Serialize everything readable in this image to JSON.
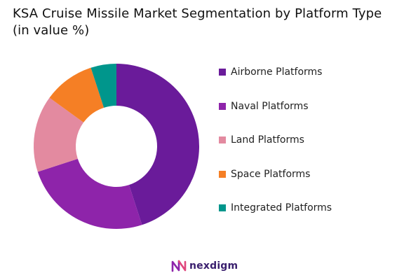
{
  "title_line1": "KSA Cruise Missile Market Segmentation by Platform Type",
  "title_line2": "(in value %)",
  "chart_data": {
    "type": "pie",
    "variant": "donut",
    "title": "KSA Cruise Missile Market Segmentation by Platform Type (in value %)",
    "unit": "%",
    "start_angle_deg": 0,
    "direction": "clockwise",
    "legend_position": "right",
    "series": [
      {
        "name": "Airborne Platforms",
        "value": 45,
        "color": "#6a1b9a"
      },
      {
        "name": "Naval Platforms",
        "value": 25,
        "color": "#8e24aa"
      },
      {
        "name": "Land Platforms",
        "value": 15,
        "color": "#e38aa0"
      },
      {
        "name": "Space Platforms",
        "value": 10,
        "color": "#f57f25"
      },
      {
        "name": "Integrated Platforms",
        "value": 5,
        "color": "#00968c"
      }
    ]
  },
  "logo": {
    "text": "nexdigm",
    "icon": "nexdigm-logo-icon",
    "color": "#3a1f6e"
  }
}
